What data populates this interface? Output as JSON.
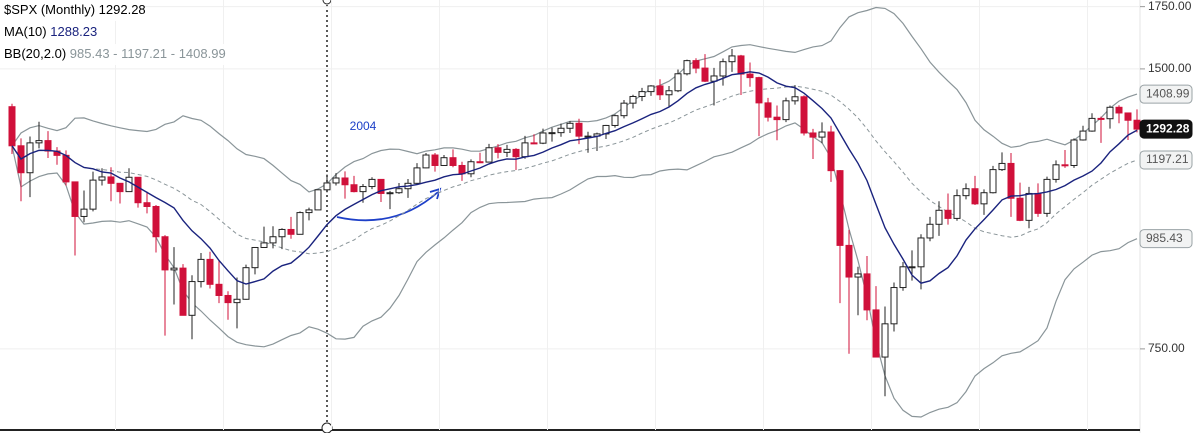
{
  "chart_data": {
    "type": "candlestick",
    "title": "$SPX (Monthly)",
    "log_scale": true,
    "up_color": "#ffffff",
    "down_color": "#d0103a",
    "ylim": [
      609,
      1779
    ],
    "yticks": [
      {
        "value": 750,
        "label": "750.00"
      },
      {
        "value": 1500,
        "label": "1500.00"
      },
      {
        "value": 1750,
        "label": "1750.00"
      }
    ],
    "ma": {
      "label": "MA(10)",
      "period": 10,
      "value": 1288.23,
      "color": "#1a237e"
    },
    "bb": {
      "label": "BB(20,2.0)",
      "period": 20,
      "mult": 2,
      "lower": 985.43,
      "mid": 1197.21,
      "upper": 1408.99,
      "color": "#8a9599"
    },
    "annotation": "2004",
    "candles": [
      [
        1366,
        1376,
        1215,
        1240
      ],
      [
        1240,
        1263,
        1081,
        1160
      ],
      [
        1160,
        1269,
        1092,
        1249
      ],
      [
        1249,
        1316,
        1232,
        1256
      ],
      [
        1256,
        1286,
        1203,
        1224
      ],
      [
        1224,
        1236,
        1183,
        1211
      ],
      [
        1211,
        1226,
        1124,
        1134
      ],
      [
        1134,
        1134,
        945,
        1041
      ],
      [
        1041,
        1110,
        1026,
        1060
      ],
      [
        1060,
        1163,
        1054,
        1139
      ],
      [
        1139,
        1173,
        1124,
        1148
      ],
      [
        1148,
        1176,
        1081,
        1130
      ],
      [
        1130,
        1130,
        1075,
        1107
      ],
      [
        1107,
        1173,
        1107,
        1147
      ],
      [
        1147,
        1147,
        1064,
        1077
      ],
      [
        1077,
        1107,
        1049,
        1067
      ],
      [
        1067,
        1071,
        952,
        990
      ],
      [
        990,
        994,
        775,
        912
      ],
      [
        912,
        965,
        837,
        916
      ],
      [
        916,
        925,
        815,
        815
      ],
      [
        815,
        900,
        768,
        886
      ],
      [
        886,
        951,
        873,
        936
      ],
      [
        936,
        954,
        871,
        880
      ],
      [
        880,
        935,
        840,
        856
      ],
      [
        856,
        865,
        806,
        841
      ],
      [
        841,
        895,
        789,
        848
      ],
      [
        848,
        924,
        847,
        917
      ],
      [
        917,
        965,
        902,
        964
      ],
      [
        964,
        1015,
        963,
        975
      ],
      [
        975,
        1016,
        962,
        990
      ],
      [
        990,
        1011,
        960,
        1008
      ],
      [
        1008,
        1040,
        985,
        996
      ],
      [
        996,
        1054,
        996,
        1051
      ],
      [
        1051,
        1064,
        1031,
        1058
      ],
      [
        1058,
        1112,
        1058,
        1112
      ],
      [
        1112,
        1155,
        1105,
        1131
      ],
      [
        1131,
        1159,
        1124,
        1145
      ],
      [
        1145,
        1164,
        1088,
        1126
      ],
      [
        1126,
        1151,
        1105,
        1107
      ],
      [
        1107,
        1128,
        1077,
        1121
      ],
      [
        1121,
        1147,
        1114,
        1141
      ],
      [
        1141,
        1141,
        1079,
        1102
      ],
      [
        1102,
        1109,
        1060,
        1104
      ],
      [
        1104,
        1131,
        1101,
        1115
      ],
      [
        1115,
        1142,
        1090,
        1130
      ],
      [
        1130,
        1188,
        1127,
        1174
      ],
      [
        1174,
        1218,
        1173,
        1212
      ],
      [
        1212,
        1218,
        1163,
        1181
      ],
      [
        1181,
        1212,
        1180,
        1204
      ],
      [
        1204,
        1229,
        1176,
        1181
      ],
      [
        1181,
        1192,
        1137,
        1157
      ],
      [
        1157,
        1199,
        1147,
        1192
      ],
      [
        1192,
        1219,
        1188,
        1191
      ],
      [
        1191,
        1246,
        1191,
        1234
      ],
      [
        1234,
        1245,
        1202,
        1220
      ],
      [
        1220,
        1243,
        1206,
        1229
      ],
      [
        1229,
        1233,
        1168,
        1207
      ],
      [
        1207,
        1271,
        1201,
        1249
      ],
      [
        1249,
        1276,
        1245,
        1248
      ],
      [
        1248,
        1294,
        1245,
        1280
      ],
      [
        1280,
        1297,
        1253,
        1281
      ],
      [
        1281,
        1310,
        1268,
        1295
      ],
      [
        1295,
        1318,
        1280,
        1311
      ],
      [
        1311,
        1326,
        1245,
        1270
      ],
      [
        1270,
        1284,
        1219,
        1270
      ],
      [
        1270,
        1281,
        1224,
        1277
      ],
      [
        1277,
        1306,
        1261,
        1304
      ],
      [
        1304,
        1340,
        1297,
        1336
      ],
      [
        1336,
        1389,
        1327,
        1378
      ],
      [
        1378,
        1407,
        1360,
        1401
      ],
      [
        1401,
        1431,
        1385,
        1418
      ],
      [
        1418,
        1441,
        1403,
        1438
      ],
      [
        1438,
        1462,
        1389,
        1407
      ],
      [
        1407,
        1438,
        1364,
        1421
      ],
      [
        1421,
        1498,
        1416,
        1482
      ],
      [
        1482,
        1535,
        1476,
        1531
      ],
      [
        1531,
        1540,
        1484,
        1503
      ],
      [
        1503,
        1556,
        1452,
        1455
      ],
      [
        1455,
        1504,
        1370,
        1474
      ],
      [
        1474,
        1539,
        1439,
        1527
      ],
      [
        1527,
        1576,
        1489,
        1549
      ],
      [
        1549,
        1553,
        1406,
        1481
      ],
      [
        1481,
        1524,
        1435,
        1468
      ],
      [
        1468,
        1471,
        1270,
        1379
      ],
      [
        1379,
        1396,
        1317,
        1331
      ],
      [
        1331,
        1370,
        1257,
        1323
      ],
      [
        1323,
        1397,
        1315,
        1386
      ],
      [
        1386,
        1441,
        1373,
        1400
      ],
      [
        1400,
        1405,
        1272,
        1280
      ],
      [
        1280,
        1293,
        1200,
        1267
      ],
      [
        1267,
        1314,
        1248,
        1283
      ],
      [
        1283,
        1303,
        1134,
        1166
      ],
      [
        1166,
        1168,
        840,
        969
      ],
      [
        969,
        1007,
        741,
        896
      ],
      [
        896,
        919,
        815,
        903
      ],
      [
        903,
        944,
        805,
        826
      ],
      [
        826,
        876,
        735,
        735
      ],
      [
        735,
        833,
        667,
        798
      ],
      [
        798,
        884,
        783,
        873
      ],
      [
        873,
        930,
        866,
        919
      ],
      [
        919,
        957,
        888,
        919
      ],
      [
        919,
        996,
        869,
        987
      ],
      [
        987,
        1040,
        979,
        1021
      ],
      [
        1021,
        1081,
        992,
        1057
      ],
      [
        1057,
        1102,
        1020,
        1036
      ],
      [
        1036,
        1113,
        1030,
        1096
      ],
      [
        1096,
        1130,
        1086,
        1115
      ],
      [
        1115,
        1151,
        1071,
        1074
      ],
      [
        1074,
        1113,
        1045,
        1104
      ],
      [
        1104,
        1180,
        1102,
        1169
      ],
      [
        1169,
        1220,
        1165,
        1187
      ],
      [
        1187,
        1218,
        1040,
        1089
      ],
      [
        1089,
        1132,
        1029,
        1031
      ],
      [
        1031,
        1120,
        1011,
        1102
      ],
      [
        1102,
        1130,
        1040,
        1049
      ],
      [
        1049,
        1149,
        1040,
        1141
      ],
      [
        1141,
        1196,
        1132,
        1183
      ],
      [
        1183,
        1227,
        1174,
        1181
      ],
      [
        1181,
        1263,
        1174,
        1258
      ],
      [
        1258,
        1303,
        1256,
        1286
      ],
      [
        1286,
        1344,
        1284,
        1327
      ],
      [
        1327,
        1333,
        1249,
        1326
      ],
      [
        1326,
        1370,
        1294,
        1364
      ],
      [
        1364,
        1371,
        1311,
        1345
      ],
      [
        1345,
        1346,
        1258,
        1321
      ],
      [
        1321,
        1357,
        1282,
        1292.28
      ]
    ]
  }
}
